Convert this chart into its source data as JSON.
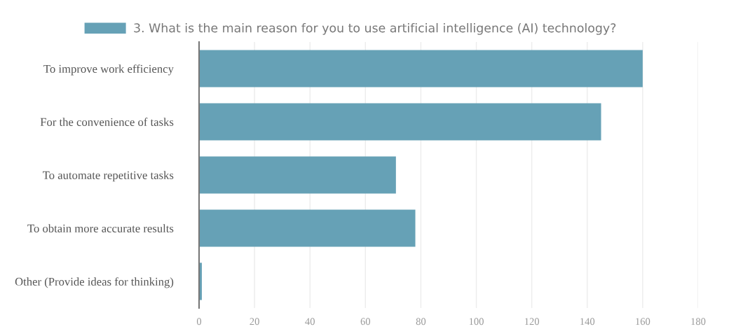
{
  "chart_data": {
    "type": "bar",
    "orientation": "horizontal",
    "categories": [
      "To improve work efficiency",
      "For the convenience of tasks",
      "To automate repetitive tasks",
      "To obtain more accurate results",
      "Other (Provide ideas for thinking)"
    ],
    "series": [
      {
        "name": "3. What is the main reason for you to use artificial intelligence (AI) technology?",
        "color": "#66a1b6",
        "values": [
          160,
          145,
          71,
          78,
          1
        ]
      }
    ],
    "xlim": [
      0,
      180
    ],
    "xticks": [
      0,
      20,
      40,
      60,
      80,
      100,
      120,
      140,
      160,
      180
    ],
    "grid": "x",
    "legend": "top"
  }
}
